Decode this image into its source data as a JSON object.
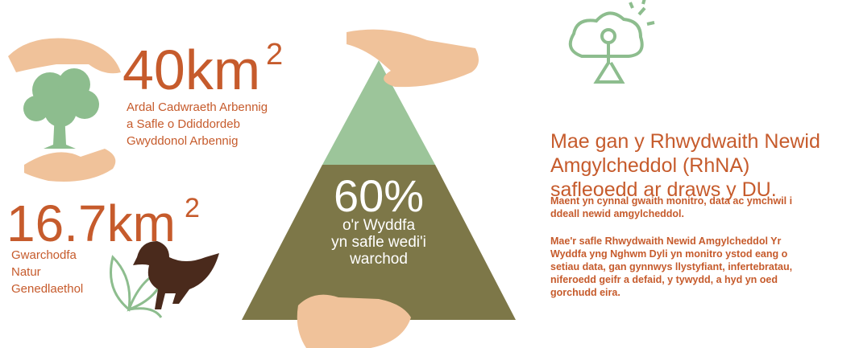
{
  "stats": [
    {
      "number": "40km",
      "unit_power": "2",
      "caption_lines": [
        "Ardal Cadwraeth Arbennig",
        "a Safle o Ddiddordeb",
        "Gwyddonol Arbennig"
      ]
    },
    {
      "number": "16.7km",
      "unit_power": "2",
      "caption_lines": [
        "Gwarchodfa",
        "Natur",
        "Genedlaethol"
      ]
    }
  ],
  "pyramid": {
    "figure": "60%",
    "caption_lines": [
      "o'r Wyddfa",
      "yn safle wedi'i",
      "warchod"
    ]
  },
  "info": {
    "heading_lines": [
      "Mae gan y Rhwydwaith Newid",
      "Amgylcheddol (RhNA)",
      "safleoedd ar draws y DU."
    ],
    "paragraph_1_lines": [
      "Maent yn cynnal gwaith monitro, data ac ymchwil i",
      "ddeall newid amgylcheddol."
    ],
    "paragraph_2_lines": [
      "Mae'r safle Rhwydwaith Newid Amgylcheddol Yr",
      "Wyddfa yng Nghwm Dyli yn monitro ystod eang o",
      "setiau data, gan gynnwys llystyfiant, infertebratau,",
      "niferoedd geifr a defaid, y tywydd, a hyd yn oed",
      "gorchudd eira."
    ]
  }
}
